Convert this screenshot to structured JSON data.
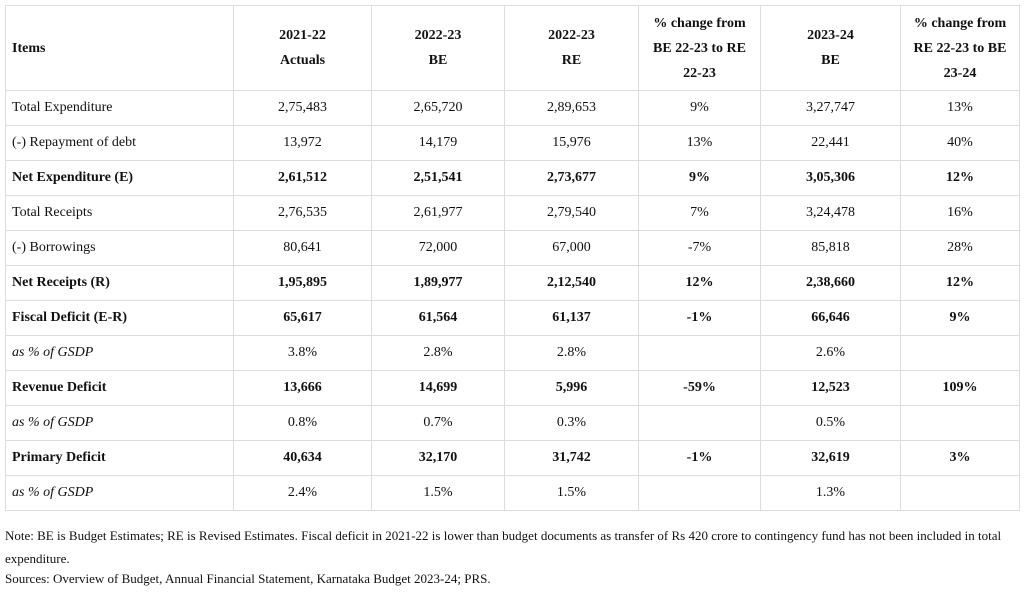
{
  "table": {
    "headers": [
      [
        "Items"
      ],
      [
        "2021-22",
        "Actuals"
      ],
      [
        "2022-23",
        "BE"
      ],
      [
        "2022-23",
        "RE"
      ],
      [
        "% change from",
        "BE 22-23 to RE",
        "22-23"
      ],
      [
        "2023-24",
        "BE"
      ],
      [
        "% change from",
        "RE 22-23 to BE",
        "23-24"
      ]
    ],
    "rows": [
      {
        "style": "normal",
        "cells": [
          "Total Expenditure",
          "2,75,483",
          "2,65,720",
          "2,89,653",
          "9%",
          "3,27,747",
          "13%"
        ]
      },
      {
        "style": "normal",
        "cells": [
          "(-) Repayment of debt",
          "13,972",
          "14,179",
          "15,976",
          "13%",
          "22,441",
          "40%"
        ]
      },
      {
        "style": "bold",
        "cells": [
          "Net Expenditure (E)",
          "2,61,512",
          "2,51,541",
          "2,73,677",
          "9%",
          "3,05,306",
          "12%"
        ]
      },
      {
        "style": "normal",
        "cells": [
          "Total Receipts",
          "2,76,535",
          "2,61,977",
          "2,79,540",
          "7%",
          "3,24,478",
          "16%"
        ]
      },
      {
        "style": "normal",
        "cells": [
          "(-) Borrowings",
          "80,641",
          "72,000",
          "67,000",
          "-7%",
          "85,818",
          "28%"
        ]
      },
      {
        "style": "bold",
        "cells": [
          "Net Receipts (R)",
          "1,95,895",
          "1,89,977",
          "2,12,540",
          "12%",
          "2,38,660",
          "12%"
        ]
      },
      {
        "style": "bold",
        "cells": [
          "Fiscal Deficit (E-R)",
          "65,617",
          "61,564",
          "61,137",
          "-1%",
          "66,646",
          "9%"
        ]
      },
      {
        "style": "italic",
        "cells": [
          "as % of GSDP",
          "3.8%",
          "2.8%",
          "2.8%",
          "",
          "2.6%",
          ""
        ]
      },
      {
        "style": "bold",
        "cells": [
          "Revenue Deficit",
          "13,666",
          "14,699",
          "5,996",
          "-59%",
          "12,523",
          "109%"
        ]
      },
      {
        "style": "italic",
        "cells": [
          "as % of GSDP",
          "0.8%",
          "0.7%",
          "0.3%",
          "",
          "0.5%",
          ""
        ]
      },
      {
        "style": "bold",
        "cells": [
          "Primary Deficit",
          "40,634",
          "32,170",
          "31,742",
          "-1%",
          "32,619",
          "3%"
        ]
      },
      {
        "style": "italic",
        "cells": [
          "as % of GSDP",
          "2.4%",
          "1.5%",
          "1.5%",
          "",
          "1.3%",
          ""
        ]
      }
    ]
  },
  "note": "Note: BE is Budget Estimates; RE is Revised Estimates.  Fiscal deficit in 2021-22 is lower than budget documents as transfer of Rs 420 crore to contingency fund has not been included in total expenditure.",
  "sources": "Sources: Overview of Budget, Annual Financial Statement, Karnataka Budget 2023-24; PRS."
}
